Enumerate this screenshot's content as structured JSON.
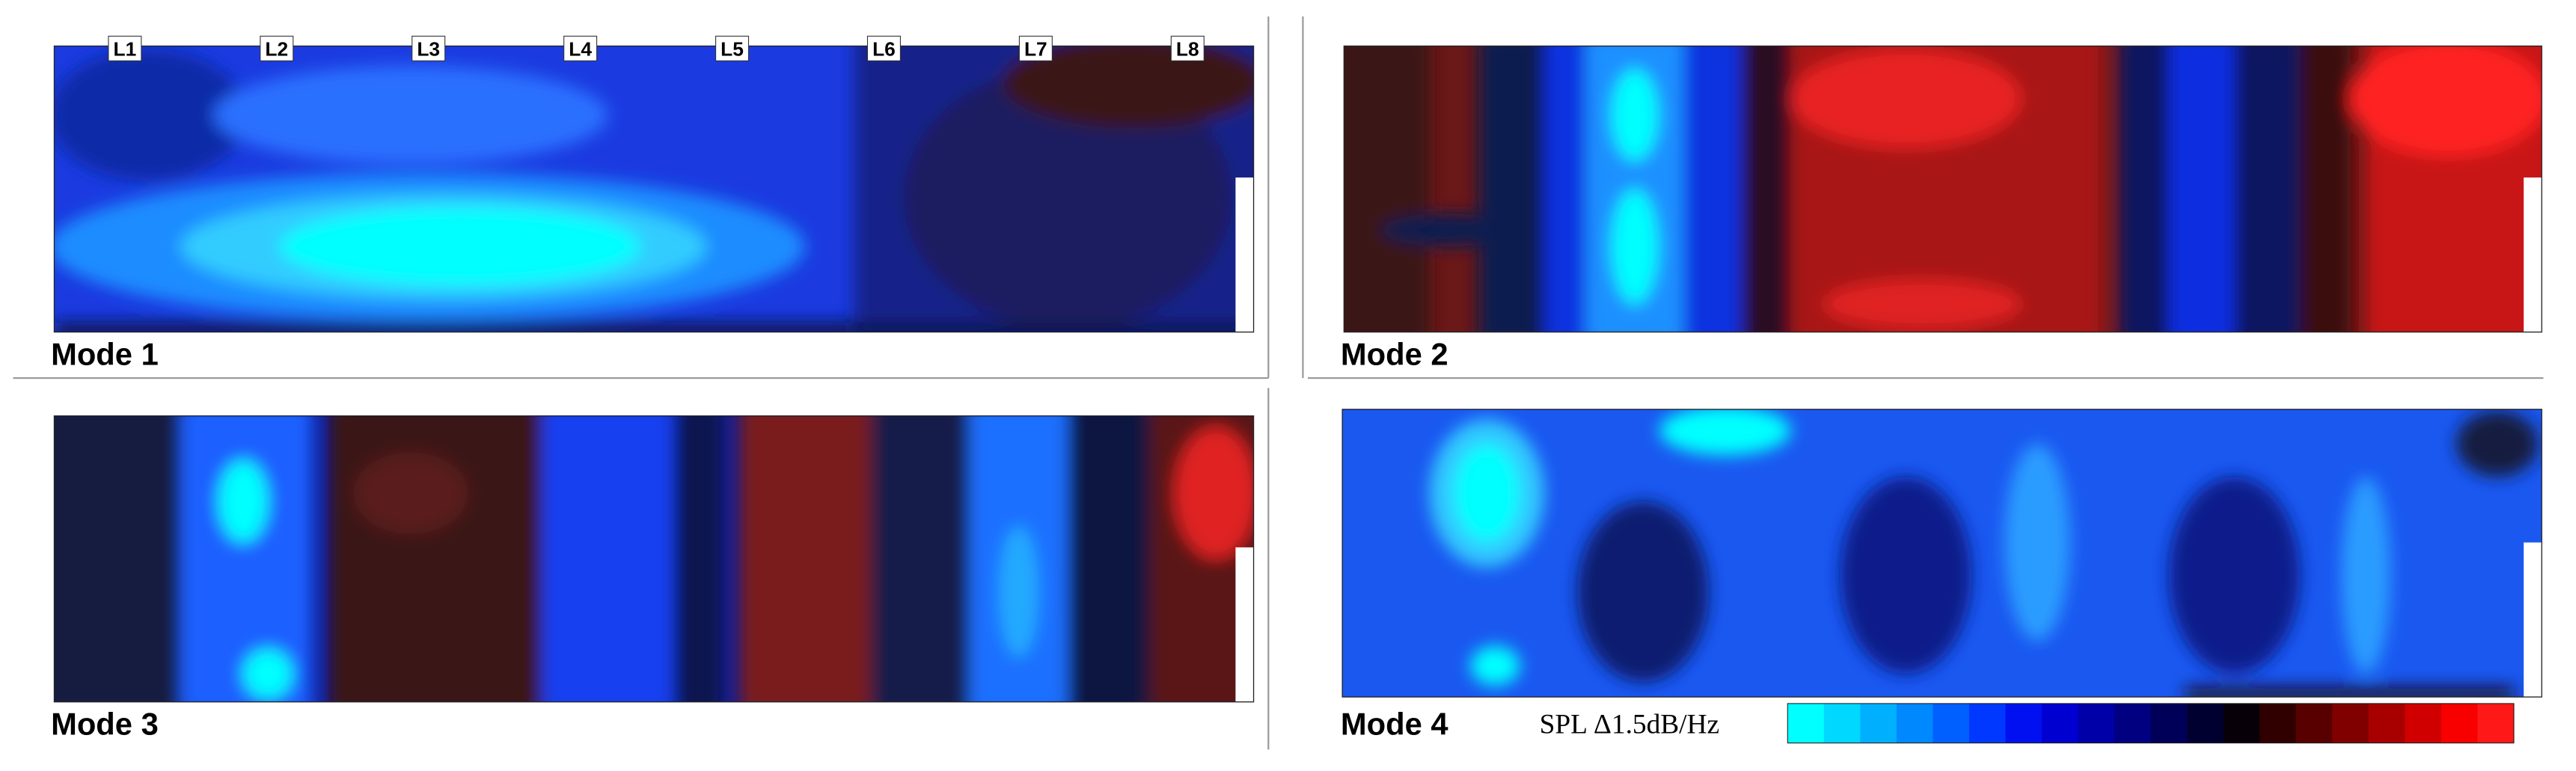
{
  "panels": [
    {
      "label": "Mode 1",
      "probes": [
        "L1",
        "L2",
        "L3",
        "L4",
        "L5",
        "L6",
        "L7",
        "L8"
      ]
    },
    {
      "label": "Mode 2"
    },
    {
      "label": "Mode 3"
    },
    {
      "label": "Mode 4"
    }
  ],
  "colorbar": {
    "label": "SPL Δ1.5dB/Hz",
    "colors": [
      "#00ffff",
      "#00d8ff",
      "#00b0ff",
      "#0088ff",
      "#0060ff",
      "#0038ff",
      "#0010f0",
      "#0000d0",
      "#0000a8",
      "#000080",
      "#000058",
      "#000030",
      "#080008",
      "#300000",
      "#580000",
      "#800000",
      "#a80000",
      "#d00000",
      "#f80000",
      "#ff1818"
    ]
  }
}
